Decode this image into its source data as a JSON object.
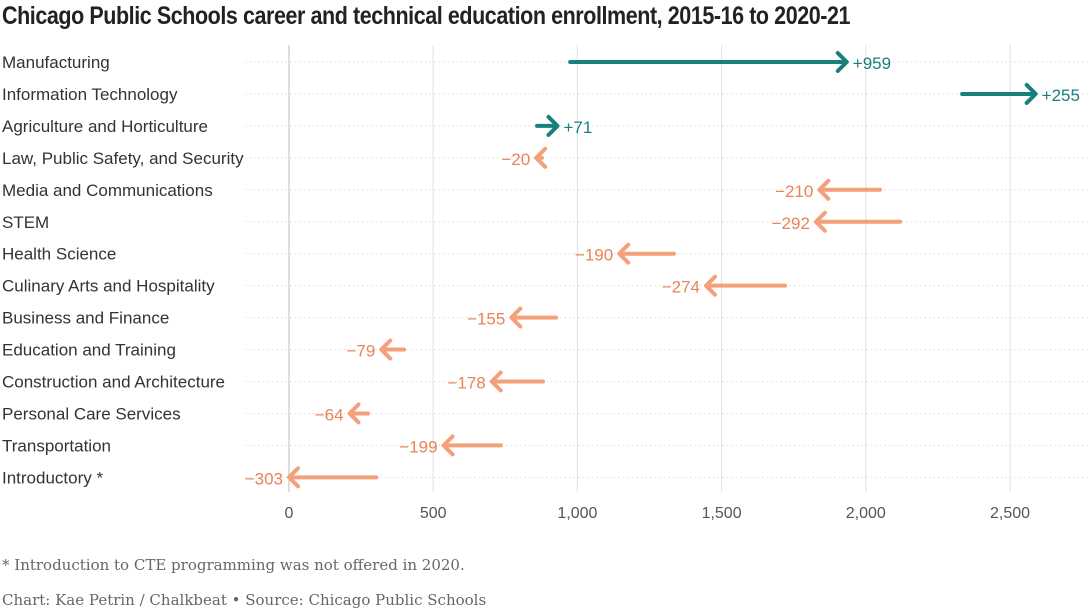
{
  "chart_data": {
    "type": "arrow",
    "title": "Chicago Public Schools career and technical education enrollment, 2015-16 to 2020-21",
    "categories": [
      "Manufacturing",
      "Information Technology",
      "Agriculture and Horticulture",
      "Law, Public Safety, and Security",
      "Media and Communications",
      "STEM",
      "Health Science",
      "Culinary Arts and Hospitality",
      "Business and Finance",
      "Education and Training",
      "Construction and Architecture",
      "Personal Care Services",
      "Transportation",
      "Introductory *"
    ],
    "start": [
      975,
      2334,
      860,
      877,
      2049,
      2119,
      1335,
      1720,
      926,
      399,
      881,
      274,
      735,
      303
    ],
    "end": [
      1934,
      2589,
      931,
      857,
      1839,
      1827,
      1145,
      1446,
      771,
      320,
      703,
      210,
      536,
      0
    ],
    "labels": [
      "+959",
      "+255",
      "+71",
      "−20",
      "−210",
      "−292",
      "−190",
      "−274",
      "−155",
      "−79",
      "−178",
      "−64",
      "−199",
      "−303"
    ],
    "xlim": [
      0,
      2700
    ],
    "xticks": [
      0,
      500,
      1000,
      1500,
      2000,
      2500
    ],
    "xtick_labels": [
      "0",
      "500",
      "1,000",
      "1,500",
      "2,000",
      "2,500"
    ],
    "grid": true,
    "colors": {
      "increase": "#17807e",
      "decrease": "#f4a07a",
      "decrease_label": "#e8845a"
    }
  },
  "footnote": "* Introduction to CTE programming was not offered in 2020.",
  "credit": "Chart: Kae Petrin / Chalkbeat • Source: Chicago Public Schools"
}
